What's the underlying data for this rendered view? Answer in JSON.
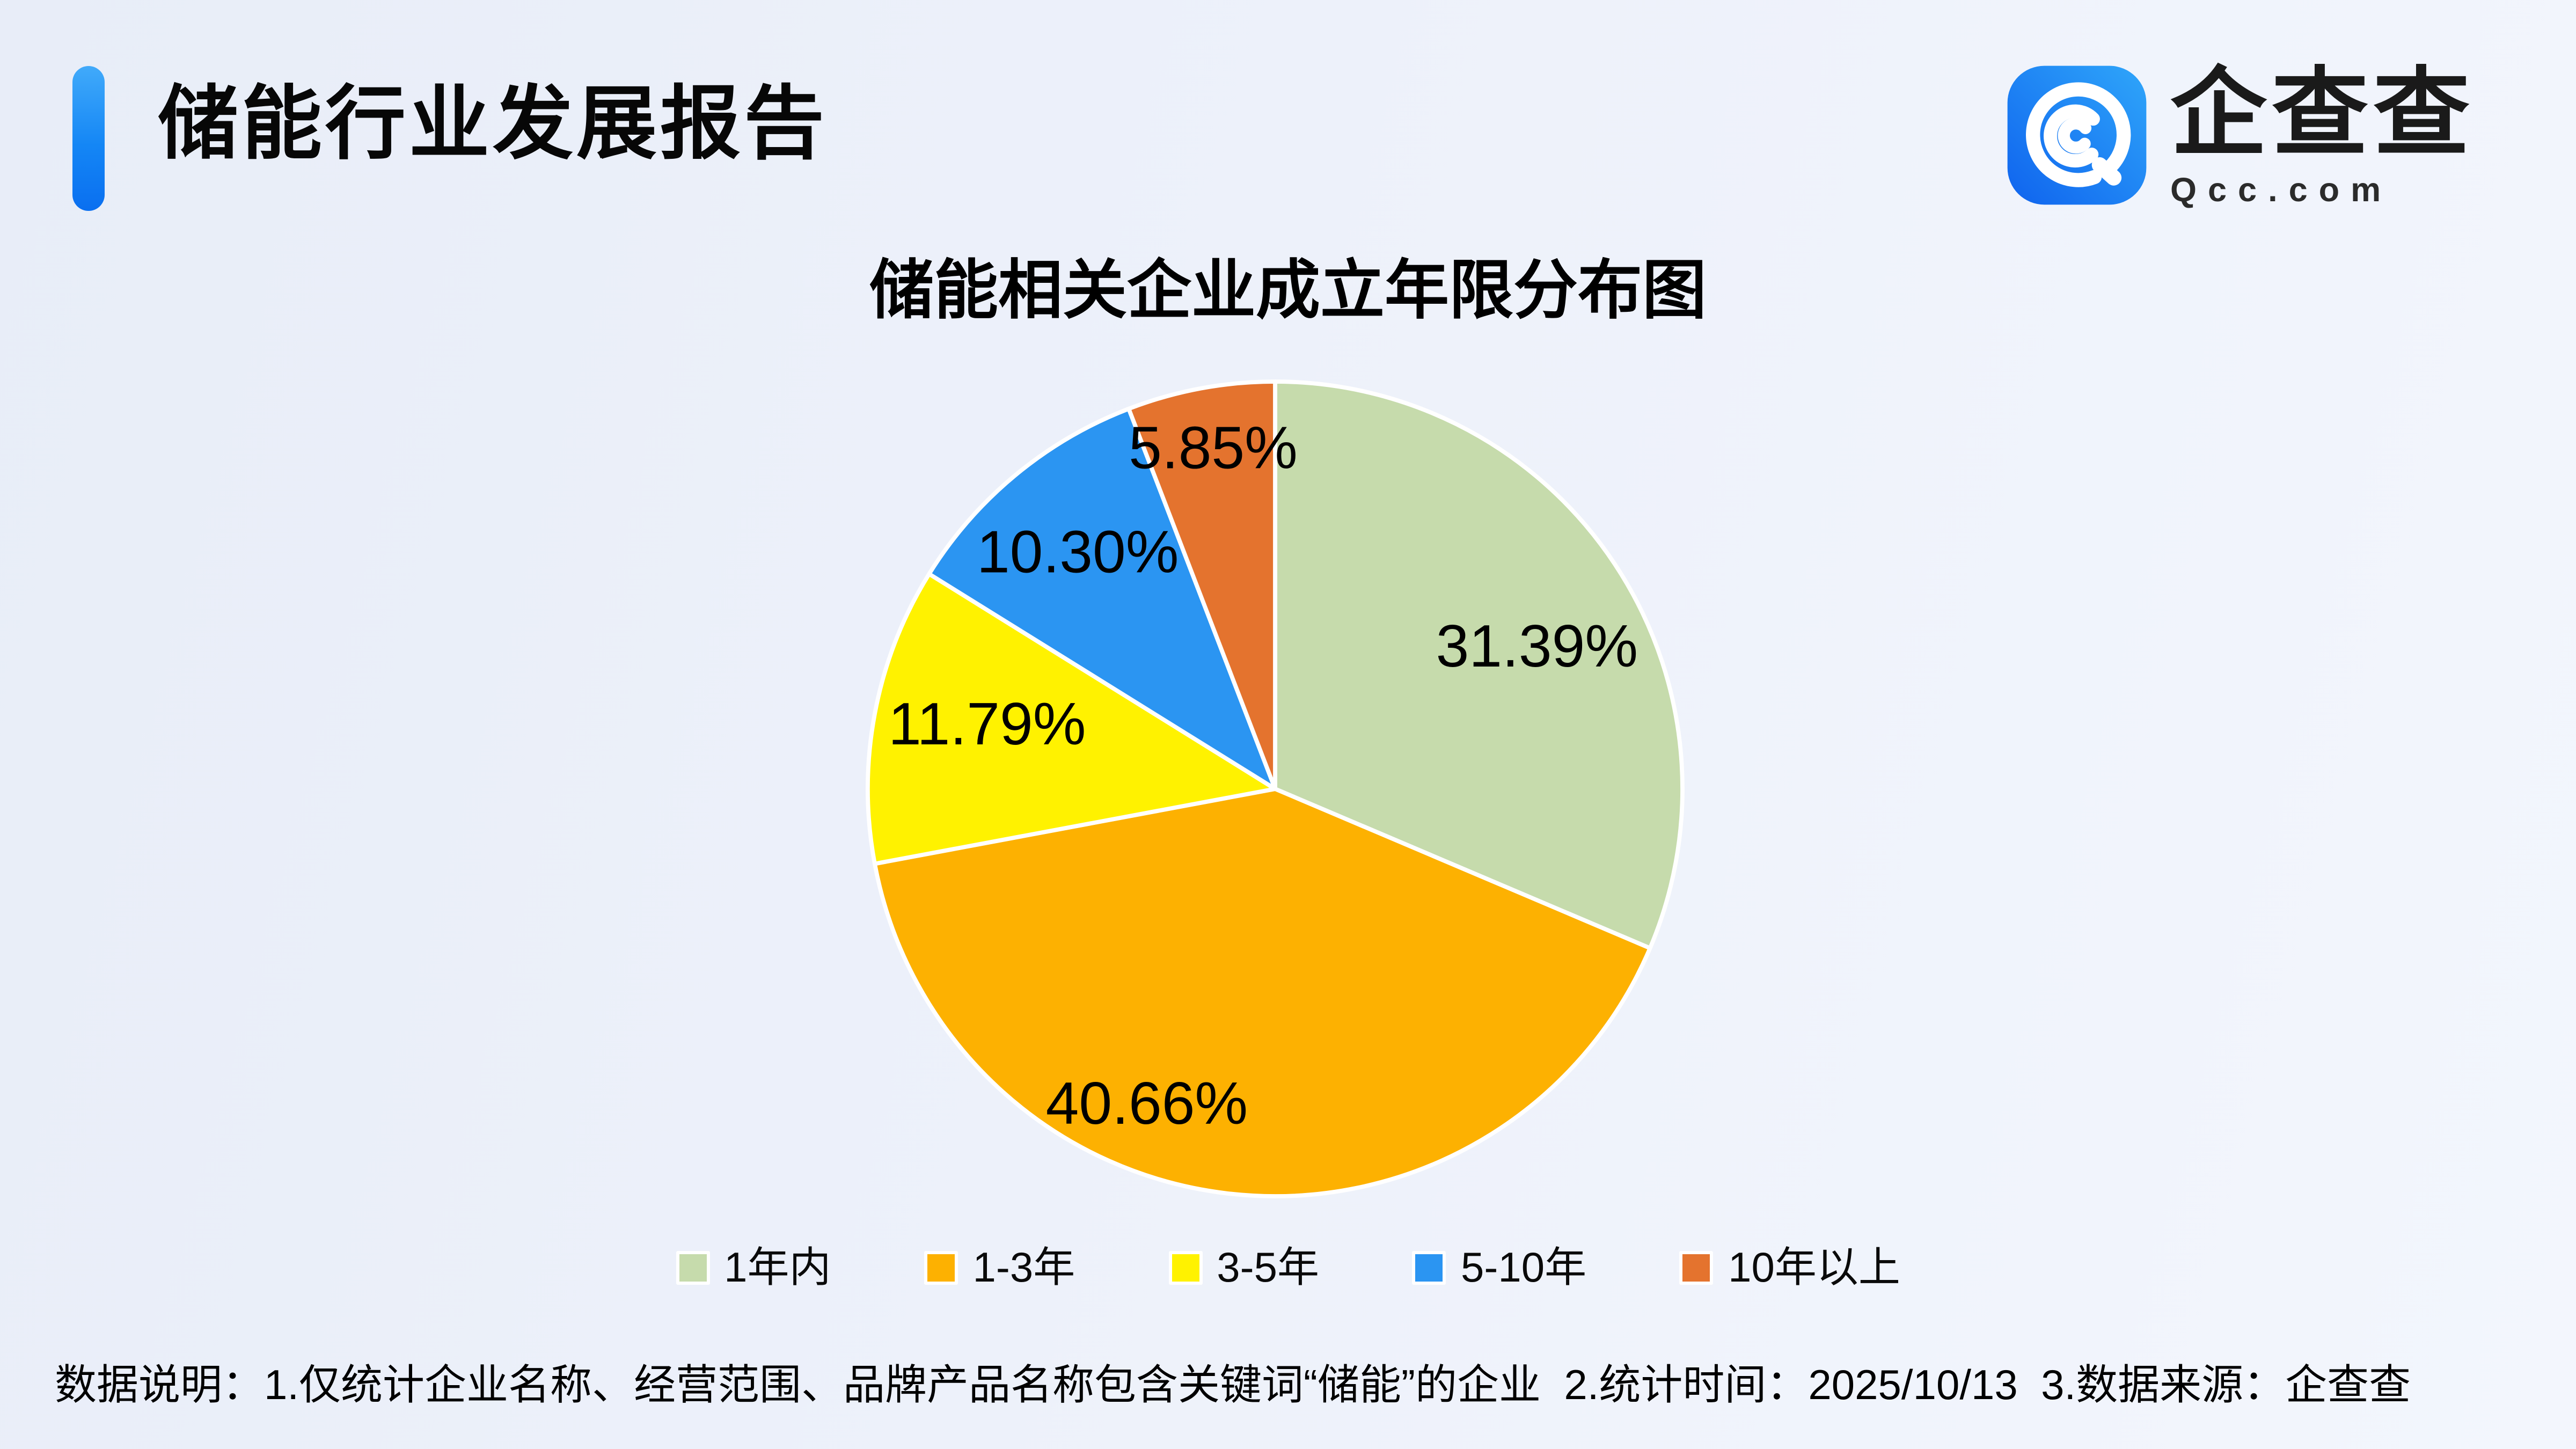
{
  "header": {
    "title": "储能行业发展报告",
    "accent_color": "#0f7bf2"
  },
  "logo": {
    "brand": "企查查",
    "domain": "Qcc.com",
    "icon_gradient": [
      "#0f63ee",
      "#2fa6fa"
    ]
  },
  "chart_data": {
    "type": "pie",
    "title": "储能相关企业成立年限分布图",
    "unit": "%",
    "start_angle_deg": 0,
    "direction": "clockwise",
    "legend_position": "bottom",
    "border_color": "#ffffff",
    "slices": [
      {
        "label": "1年内",
        "value": 31.39,
        "display": "31.39%",
        "color": "#c6dbac",
        "label_angle_deg": 61.4,
        "label_radius_frac": 0.732
      },
      {
        "label": "1-3年",
        "value": 40.66,
        "display": "40.66%",
        "color": "#fdb101",
        "label_angle_deg": 202.2,
        "label_radius_frac": 0.834
      },
      {
        "label": "3-5年",
        "value": 11.79,
        "display": "11.79%",
        "color": "#fff200",
        "label_angle_deg": 282.7,
        "label_radius_frac": 0.725
      },
      {
        "label": "5-10年",
        "value": 10.3,
        "display": "10.30%",
        "color": "#2b95f2",
        "label_angle_deg": 320.2,
        "label_radius_frac": 0.757
      },
      {
        "label": "10年以上",
        "value": 5.85,
        "display": "5.85%",
        "color": "#e4732e",
        "label_angle_deg": 349.7,
        "label_radius_frac": 0.851
      }
    ]
  },
  "footer": {
    "note": "数据说明：1.仅统计企业名称、经营范围、品牌产品名称包含关键词“储能”的企业  2.统计时间：2025/10/13  3.数据来源：企查查"
  }
}
